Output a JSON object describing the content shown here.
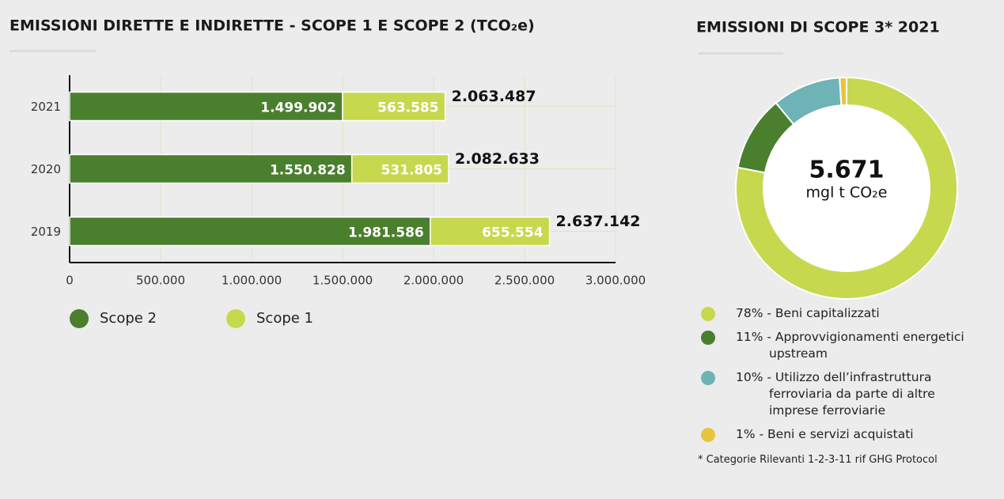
{
  "chart_data": [
    {
      "type": "bar",
      "orientation": "horizontal",
      "stacked": true,
      "title": "EMISSIONI DIRETTE E INDIRETTE - SCOPE 1 E SCOPE 2 (TCO₂e)",
      "categories": [
        "2021",
        "2020",
        "2019"
      ],
      "series": [
        {
          "name": "Scope 2",
          "color": "#4a7f2e",
          "values": [
            1499902,
            1550828,
            1981586
          ],
          "value_labels": [
            "1.499.902",
            "1.550.828",
            "1.981.586"
          ]
        },
        {
          "name": "Scope 1",
          "color": "#c6d94e",
          "values": [
            563585,
            531805,
            655554
          ],
          "value_labels": [
            "563.585",
            "531.805",
            "655.554"
          ]
        }
      ],
      "totals": [
        2063487,
        2082633,
        2637142
      ],
      "total_labels": [
        "2.063.487",
        "2.082.633",
        "2.637.142"
      ],
      "xlim": [
        0,
        3000000
      ],
      "xticks": [
        0,
        {
          "value": 500000,
          "label": "500.000"
        },
        {
          "value": 1000000,
          "label": "1.000.000"
        },
        {
          "value": 1500000,
          "label": "1.500.000"
        },
        {
          "value": 2000000,
          "label": "2.000.000"
        },
        {
          "value": 2500000,
          "label": "2.500.000"
        },
        {
          "value": 3000000,
          "label": "3.000.000"
        }
      ],
      "grid": true
    },
    {
      "type": "donut",
      "title": "EMISSIONI DI SCOPE 3* 2021",
      "center_label": "5.671",
      "center_unit": "mgl t CO₂e",
      "values": [
        78,
        11,
        10,
        1
      ],
      "labels": [
        "78% - Beni capitalizzati",
        "11% - Approvvigionamenti energetici upstream",
        "10% - Utilizzo dell’infrastruttura ferroviaria da parte di altre imprese ferroviarie",
        "1% - Beni e servizi acquistati"
      ],
      "colors": [
        "#c6d94e",
        "#4a7f2e",
        "#6eb3b6",
        "#e8c53a"
      ],
      "footnote": "* Categorie Rilevanti 1-2-3-11 rif GHG Protocol"
    }
  ]
}
